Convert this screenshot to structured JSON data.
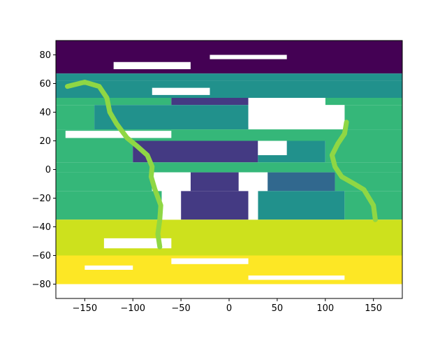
{
  "chart_data": {
    "type": "heatmap",
    "title": "",
    "xlabel": "",
    "ylabel": "",
    "xlim": [
      -180,
      180
    ],
    "ylim": [
      -90,
      90
    ],
    "xticks": [
      -150,
      -100,
      -50,
      0,
      50,
      100,
      150
    ],
    "yticks": [
      -80,
      -60,
      -40,
      -20,
      0,
      20,
      40,
      60,
      80
    ],
    "xtick_labels": [
      "−150",
      "−100",
      "−50",
      "0",
      "50",
      "100",
      "150"
    ],
    "ytick_labels": [
      "−80",
      "−60",
      "−40",
      "−20",
      "0",
      "20",
      "40",
      "60",
      "80"
    ],
    "colormap": "viridis",
    "colors": {
      "c0": "#440154",
      "c1": "#443a83",
      "c2": "#31688e",
      "c3": "#21918c",
      "c4": "#35b779",
      "c5": "#8fd744",
      "c6": "#cde11d",
      "c7": "#fde725",
      "missing": "#ffffff"
    },
    "bands": [
      {
        "lat": [
          67,
          90
        ],
        "lon": [
          -180,
          180
        ],
        "color": "c0"
      },
      {
        "lat": [
          62,
          67
        ],
        "lon": [
          -180,
          180
        ],
        "color": "c3"
      },
      {
        "lat": [
          50,
          62
        ],
        "lon": [
          -180,
          180
        ],
        "color": "c3"
      },
      {
        "lat": [
          45,
          50
        ],
        "lon": [
          -180,
          -60
        ],
        "color": "c4"
      },
      {
        "lat": [
          45,
          50
        ],
        "lon": [
          -60,
          20
        ],
        "color": "c1"
      },
      {
        "lat": [
          45,
          50
        ],
        "lon": [
          100,
          180
        ],
        "color": "c4"
      },
      {
        "lat": [
          28,
          45
        ],
        "lon": [
          -180,
          -140
        ],
        "color": "c4"
      },
      {
        "lat": [
          28,
          45
        ],
        "lon": [
          -140,
          20
        ],
        "color": "c3"
      },
      {
        "lat": [
          28,
          45
        ],
        "lon": [
          120,
          180
        ],
        "color": "c4"
      },
      {
        "lat": [
          20,
          28
        ],
        "lon": [
          -180,
          180
        ],
        "color": "c4"
      },
      {
        "lat": [
          5,
          20
        ],
        "lon": [
          -180,
          -100
        ],
        "color": "c4"
      },
      {
        "lat": [
          5,
          20
        ],
        "lon": [
          -100,
          30
        ],
        "color": "c1"
      },
      {
        "lat": [
          5,
          20
        ],
        "lon": [
          30,
          100
        ],
        "color": "c3"
      },
      {
        "lat": [
          5,
          20
        ],
        "lon": [
          100,
          180
        ],
        "color": "c4"
      },
      {
        "lat": [
          -2,
          5
        ],
        "lon": [
          -180,
          180
        ],
        "color": "c4"
      },
      {
        "lat": [
          -15,
          -2
        ],
        "lon": [
          -180,
          -80
        ],
        "color": "c4"
      },
      {
        "lat": [
          -15,
          -2
        ],
        "lon": [
          -40,
          10
        ],
        "color": "c1"
      },
      {
        "lat": [
          -15,
          -2
        ],
        "lon": [
          40,
          110
        ],
        "color": "c2"
      },
      {
        "lat": [
          -15,
          -2
        ],
        "lon": [
          110,
          180
        ],
        "color": "c4"
      },
      {
        "lat": [
          -35,
          -15
        ],
        "lon": [
          -180,
          -70
        ],
        "color": "c4"
      },
      {
        "lat": [
          -35,
          -15
        ],
        "lon": [
          -50,
          20
        ],
        "color": "c1"
      },
      {
        "lat": [
          -35,
          -15
        ],
        "lon": [
          30,
          120
        ],
        "color": "c3"
      },
      {
        "lat": [
          -35,
          -15
        ],
        "lon": [
          120,
          180
        ],
        "color": "c4"
      },
      {
        "lat": [
          -40,
          -35
        ],
        "lon": [
          -180,
          180
        ],
        "color": "c6"
      },
      {
        "lat": [
          -60,
          -40
        ],
        "lon": [
          -180,
          180
        ],
        "color": "c6"
      },
      {
        "lat": [
          -80,
          -60
        ],
        "lon": [
          -180,
          180
        ],
        "color": "c7"
      }
    ],
    "gaps": [
      {
        "lat": [
          70,
          75
        ],
        "lon": [
          -120,
          -40
        ]
      },
      {
        "lat": [
          77,
          80
        ],
        "lon": [
          -20,
          60
        ]
      },
      {
        "lat": [
          52,
          57
        ],
        "lon": [
          -80,
          -20
        ]
      },
      {
        "lat": [
          45,
          50
        ],
        "lon": [
          20,
          100
        ]
      },
      {
        "lat": [
          30,
          45
        ],
        "lon": [
          20,
          120
        ]
      },
      {
        "lat": [
          22,
          27
        ],
        "lon": [
          -170,
          -60
        ]
      },
      {
        "lat": [
          10,
          20
        ],
        "lon": [
          30,
          60
        ]
      },
      {
        "lat": [
          -15,
          -2
        ],
        "lon": [
          -80,
          -40
        ]
      },
      {
        "lat": [
          -15,
          -2
        ],
        "lon": [
          10,
          40
        ]
      },
      {
        "lat": [
          -35,
          -15
        ],
        "lon": [
          -70,
          -50
        ]
      },
      {
        "lat": [
          -35,
          -15
        ],
        "lon": [
          20,
          30
        ]
      },
      {
        "lat": [
          -55,
          -48
        ],
        "lon": [
          -130,
          -60
        ]
      },
      {
        "lat": [
          -66,
          -62
        ],
        "lon": [
          -60,
          20
        ]
      },
      {
        "lat": [
          -77,
          -74
        ],
        "lon": [
          20,
          120
        ]
      },
      {
        "lat": [
          -70,
          -67
        ],
        "lon": [
          -150,
          -100
        ]
      }
    ],
    "coast_tracks": [
      {
        "points": [
          [
            -168,
            58
          ],
          [
            -150,
            61
          ],
          [
            -135,
            58
          ],
          [
            -127,
            50
          ],
          [
            -124,
            40
          ],
          [
            -117,
            32
          ],
          [
            -106,
            22
          ],
          [
            -95,
            16
          ],
          [
            -85,
            10
          ],
          [
            -80,
            2
          ],
          [
            -81,
            -5
          ],
          [
            -77,
            -14
          ],
          [
            -71,
            -25
          ],
          [
            -72,
            -35
          ],
          [
            -74,
            -45
          ],
          [
            -72,
            -54
          ]
        ],
        "color": "c5"
      },
      {
        "points": [
          [
            122,
            33
          ],
          [
            120,
            25
          ],
          [
            113,
            18
          ],
          [
            107,
            10
          ],
          [
            110,
            2
          ],
          [
            117,
            -5
          ],
          [
            130,
            -10
          ],
          [
            140,
            -14
          ],
          [
            150,
            -25
          ],
          [
            152,
            -35
          ]
        ],
        "color": "c5"
      }
    ]
  }
}
